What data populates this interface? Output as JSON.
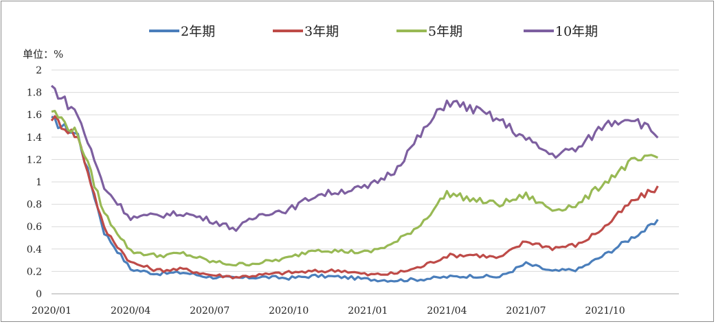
{
  "unit_label": "单位：%",
  "chart_data": {
    "type": "line",
    "title": "",
    "xlabel": "",
    "ylabel": "单位：%",
    "ylim": [
      0,
      2
    ],
    "yticks": [
      0,
      0.2,
      0.4,
      0.6,
      0.8,
      1,
      1.2,
      1.4,
      1.6,
      1.8,
      2
    ],
    "ytick_labels": [
      "0",
      "0.2",
      "0.4",
      "0.6",
      "0.8",
      "1",
      "1.2",
      "1.4",
      "1.6",
      "1.8",
      "2"
    ],
    "xlim": [
      "2020-01",
      "2021-12"
    ],
    "xticks": [
      "2020/01",
      "2020/04",
      "2020/07",
      "2020/10",
      "2021/01",
      "2021/04",
      "2021/07",
      "2021/10"
    ],
    "grid": "horizontal",
    "legend_position": "top",
    "x": [
      "2020-01",
      "2020-02",
      "2020-03",
      "2020-04",
      "2020-05",
      "2020-06",
      "2020-07",
      "2020-08",
      "2020-09",
      "2020-10",
      "2020-11",
      "2020-12",
      "2021-01",
      "2021-02",
      "2021-03",
      "2021-04",
      "2021-05",
      "2021-06",
      "2021-07",
      "2021-08",
      "2021-09",
      "2021-10",
      "2021-11",
      "2021-12"
    ],
    "series": [
      {
        "name": "2年期",
        "color": "#4a7ebb",
        "values": [
          1.55,
          1.42,
          0.55,
          0.22,
          0.18,
          0.19,
          0.15,
          0.14,
          0.15,
          0.14,
          0.16,
          0.15,
          0.13,
          0.12,
          0.13,
          0.15,
          0.16,
          0.15,
          0.27,
          0.2,
          0.22,
          0.35,
          0.5,
          0.64
        ]
      },
      {
        "name": "3年期",
        "color": "#be4b48",
        "values": [
          1.58,
          1.4,
          0.58,
          0.28,
          0.21,
          0.22,
          0.17,
          0.15,
          0.17,
          0.19,
          0.2,
          0.21,
          0.17,
          0.18,
          0.24,
          0.34,
          0.35,
          0.32,
          0.47,
          0.41,
          0.44,
          0.6,
          0.82,
          0.95
        ]
      },
      {
        "name": "5年期",
        "color": "#98b954",
        "values": [
          1.64,
          1.42,
          0.72,
          0.38,
          0.34,
          0.36,
          0.29,
          0.26,
          0.28,
          0.32,
          0.4,
          0.38,
          0.37,
          0.45,
          0.62,
          0.9,
          0.84,
          0.8,
          0.88,
          0.75,
          0.8,
          1.0,
          1.18,
          1.22
        ]
      },
      {
        "name": "10年期",
        "color": "#7d5fa0",
        "values": [
          1.85,
          1.6,
          0.95,
          0.68,
          0.7,
          0.72,
          0.66,
          0.58,
          0.72,
          0.75,
          0.88,
          0.92,
          0.95,
          1.1,
          1.42,
          1.72,
          1.65,
          1.55,
          1.38,
          1.24,
          1.3,
          1.52,
          1.58,
          1.42
        ]
      }
    ]
  }
}
